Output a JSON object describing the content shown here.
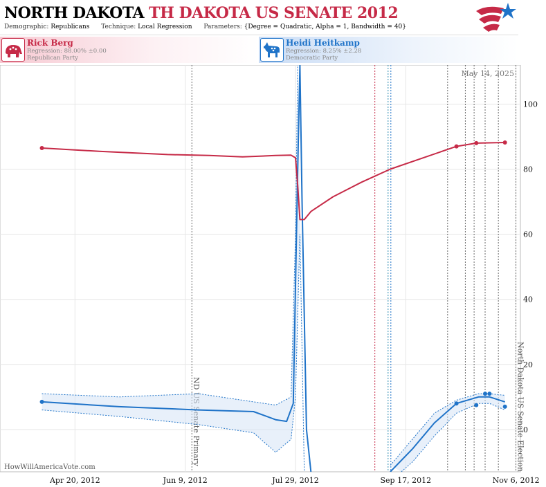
{
  "header": {
    "title_state": "NORTH DAKOTA",
    "title_race": "TH DAKOTA US SENATE 2012",
    "demographic_label": "Demographic:",
    "demographic": "Republicans",
    "technique_label": "Technique:",
    "technique": "Local Regression",
    "parameters_label": "Parameters:",
    "parameters": "{Degree = Quadratic, Alpha = 1, Bandwidth = 40}"
  },
  "candidates": [
    {
      "name": "Rick Berg",
      "regression": "Regression: 88.00% ±0.00",
      "party": "Republican Party",
      "icon": "elephant-icon",
      "color": "#c62a47"
    },
    {
      "name": "Heidi Heitkamp",
      "regression": "Regression: 8.25% ±2.28",
      "party": "Democratic Party",
      "icon": "donkey-icon",
      "color": "#1f73c8"
    }
  ],
  "chart_data": {
    "type": "line",
    "date_label": "May 14, 2025",
    "watermark": "HowWillAmericaVote.com",
    "x_ticks": [
      "Apr 20, 2012",
      "Jun 9, 2012",
      "Jul 29, 2012",
      "Sep 17, 2012",
      "Nov 6, 2012"
    ],
    "y_ticks": [
      "0",
      "20",
      "40",
      "60",
      "80",
      "100"
    ],
    "ylim": [
      -13,
      112
    ],
    "xlim": [
      "2012-03-17",
      "2012-11-08"
    ],
    "y_axis_position": "right",
    "grid": true,
    "events": [
      {
        "date": "2012-06-12",
        "label": "ND US Senate Primary"
      },
      {
        "date": "2012-11-06",
        "label": "North Dakota US Senate Election"
      }
    ],
    "debate_markers": [
      {
        "date": "2012-09-03",
        "color": "#c62a47"
      },
      {
        "date": "2012-09-09",
        "color": "#2a8ab0"
      },
      {
        "date": "2012-09-09",
        "color": "#1f73c8"
      }
    ],
    "poll_markers": [
      "2012-10-06",
      "2012-10-14",
      "2012-10-18",
      "2012-10-23",
      "2012-10-29"
    ],
    "series": [
      {
        "name": "Rick Berg",
        "color": "#c62a47",
        "points": [
          [
            "2012-04-05",
            86.5
          ],
          [
            "2012-10-10",
            87
          ],
          [
            "2012-10-19",
            88
          ],
          [
            "2012-11-01",
            88.2
          ]
        ],
        "line": [
          [
            "2012-04-05",
            86.5
          ],
          [
            "2012-05-01",
            85.5
          ],
          [
            "2012-06-01",
            84.5
          ],
          [
            "2012-06-20",
            84.2
          ],
          [
            "2012-07-05",
            83.8
          ],
          [
            "2012-07-20",
            84.2
          ],
          [
            "2012-07-27",
            84.3
          ],
          [
            "2012-07-29",
            83.5
          ],
          [
            "2012-07-30",
            75
          ],
          [
            "2012-07-31",
            64.5
          ],
          [
            "2012-08-02",
            64.5
          ],
          [
            "2012-08-05",
            67
          ],
          [
            "2012-08-15",
            71.5
          ],
          [
            "2012-08-28",
            76
          ],
          [
            "2012-09-10",
            80
          ],
          [
            "2012-09-25",
            83.5
          ],
          [
            "2012-10-10",
            87
          ],
          [
            "2012-10-19",
            88
          ],
          [
            "2012-11-01",
            88.2
          ]
        ]
      },
      {
        "name": "Heidi Heitkamp",
        "color": "#1f73c8",
        "points": [
          [
            "2012-04-05",
            8.5
          ],
          [
            "2012-10-10",
            8
          ],
          [
            "2012-10-19",
            7.5
          ],
          [
            "2012-10-23",
            11
          ],
          [
            "2012-10-25",
            11
          ],
          [
            "2012-11-01",
            7
          ]
        ],
        "line": [
          [
            "2012-04-05",
            8.5
          ],
          [
            "2012-05-10",
            7
          ],
          [
            "2012-06-15",
            6
          ],
          [
            "2012-07-10",
            5.5
          ],
          [
            "2012-07-20",
            3
          ],
          [
            "2012-07-25",
            2.5
          ],
          [
            "2012-07-28",
            8
          ],
          [
            "2012-07-30",
            80
          ],
          [
            "2012-07-31",
            112
          ],
          [
            "2012-08-01",
            70
          ],
          [
            "2012-08-03",
            0
          ],
          [
            "2012-08-05",
            -13
          ]
        ],
        "line2": [
          [
            "2012-09-10",
            -13
          ],
          [
            "2012-09-20",
            -6
          ],
          [
            "2012-09-30",
            2
          ],
          [
            "2012-10-10",
            8
          ],
          [
            "2012-10-20",
            10
          ],
          [
            "2012-10-25",
            10
          ],
          [
            "2012-11-01",
            8.5
          ]
        ],
        "band_upper": [
          [
            "2012-04-05",
            11
          ],
          [
            "2012-05-10",
            10
          ],
          [
            "2012-06-15",
            11
          ],
          [
            "2012-07-10",
            8.5
          ],
          [
            "2012-07-20",
            7.5
          ],
          [
            "2012-07-27",
            10
          ],
          [
            "2012-07-29",
            60
          ],
          [
            "2012-07-30",
            112
          ]
        ],
        "band_lower": [
          [
            "2012-04-05",
            6
          ],
          [
            "2012-05-10",
            4
          ],
          [
            "2012-06-15",
            1.5
          ],
          [
            "2012-07-10",
            -1
          ],
          [
            "2012-07-20",
            -7
          ],
          [
            "2012-07-27",
            -3
          ],
          [
            "2012-07-29",
            10
          ],
          [
            "2012-07-31",
            60
          ],
          [
            "2012-08-02",
            -13
          ]
        ],
        "band2_upper": [
          [
            "2012-09-10",
            -11
          ],
          [
            "2012-09-20",
            -3
          ],
          [
            "2012-09-30",
            5
          ],
          [
            "2012-10-10",
            9
          ],
          [
            "2012-10-20",
            11
          ],
          [
            "2012-10-25",
            11
          ],
          [
            "2012-11-01",
            10.5
          ]
        ],
        "band2_lower": [
          [
            "2012-09-15",
            -13
          ],
          [
            "2012-09-20",
            -10
          ],
          [
            "2012-09-30",
            -2
          ],
          [
            "2012-10-10",
            5
          ],
          [
            "2012-10-20",
            8
          ],
          [
            "2012-10-25",
            8
          ],
          [
            "2012-11-01",
            6
          ]
        ]
      }
    ]
  }
}
